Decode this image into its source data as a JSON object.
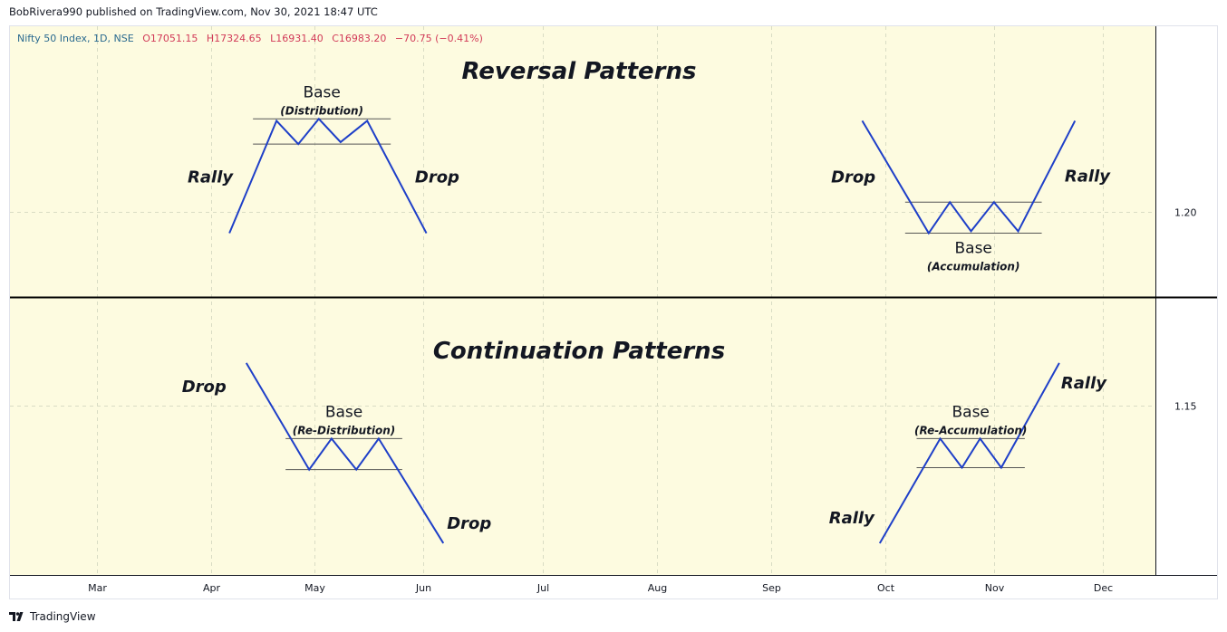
{
  "header": {
    "published": "BobRivera990 published on TradingView.com, Nov 30, 2021 18:47 UTC"
  },
  "legend": {
    "symbol": "Nifty 50 Index, 1D, NSE",
    "open": "O17051.15",
    "high": "H17324.65",
    "low": "L16931.40",
    "close": "C16983.20",
    "change": "−70.75 (−0.41%)"
  },
  "footer": {
    "brand": "TradingView"
  },
  "colors": {
    "background": "#fdfbe0",
    "line": "#1e3fc8",
    "legend_value": "#d23a58",
    "grid": "#d9dcc4"
  },
  "chart_data": {
    "type": "line",
    "x_ticks": [
      "Mar",
      "Apr",
      "May",
      "Jun",
      "Jul",
      "Aug",
      "Sep",
      "Oct",
      "Nov",
      "Dec"
    ],
    "y_ticks": [
      "1.20",
      "1.15"
    ],
    "sections": [
      {
        "title": "Reversal Patterns",
        "patterns": [
          {
            "labels": [
              "Rally",
              "Drop"
            ],
            "base": {
              "label": "Base",
              "sub": "(Distribution)"
            },
            "points": [
              [
                0.1815,
                1.1945
              ],
              [
                0.2205,
                1.2235
              ],
              [
                0.2385,
                1.2175
              ],
              [
                0.2555,
                1.224
              ],
              [
                0.2735,
                1.218
              ],
              [
                0.2955,
                1.2235
              ],
              [
                0.3445,
                1.1945
              ]
            ]
          },
          {
            "labels": [
              "Drop",
              "Rally"
            ],
            "base": {
              "label": "Base",
              "sub": "(Accumulation)"
            },
            "points": [
              [
                0.705,
                1.2235
              ],
              [
                0.76,
                1.1945
              ],
              [
                0.7775,
                1.2025
              ],
              [
                0.795,
                1.195
              ],
              [
                0.814,
                1.2025
              ],
              [
                0.834,
                1.195
              ],
              [
                0.881,
                1.2235
              ]
            ]
          }
        ]
      },
      {
        "title": "Continuation Patterns",
        "patterns": [
          {
            "labels": [
              "Drop",
              "Drop"
            ],
            "base": {
              "label": "Base",
              "sub": "(Re-Distribution)"
            },
            "points": [
              [
                0.1955,
                1.161
              ],
              [
                0.2475,
                1.1335
              ],
              [
                0.266,
                1.1415
              ],
              [
                0.2865,
                1.1335
              ],
              [
                0.305,
                1.1415
              ],
              [
                0.3585,
                1.1145
              ]
            ]
          },
          {
            "labels": [
              "Rally",
              "Rally"
            ],
            "base": {
              "label": "Base",
              "sub": "(Re-Accumulation)"
            },
            "points": [
              [
                0.7195,
                1.1145
              ],
              [
                0.7695,
                1.1415
              ],
              [
                0.7875,
                1.134
              ],
              [
                0.8025,
                1.1415
              ],
              [
                0.82,
                1.134
              ],
              [
                0.868,
                1.161
              ]
            ]
          }
        ]
      }
    ]
  }
}
